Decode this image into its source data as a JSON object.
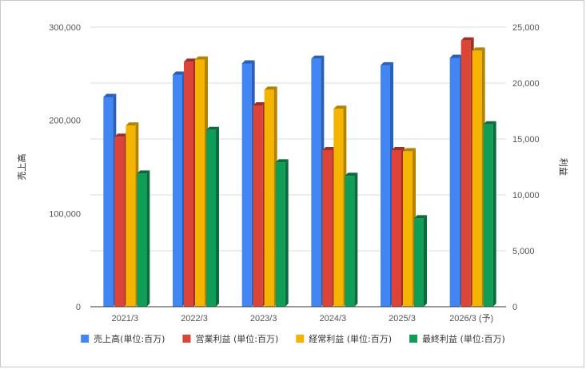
{
  "chart_data": {
    "type": "bar",
    "title": "",
    "categories": [
      "2021/3",
      "2022/3",
      "2023/3",
      "2024/3",
      "2025/3",
      "2026/3 (予)"
    ],
    "left_axis": {
      "label": "売上高",
      "ylim": [
        0,
        300000
      ],
      "ticks": [
        "0",
        "100,000",
        "200,000",
        "300,000"
      ],
      "tick_values": [
        0,
        100000,
        200000,
        300000
      ]
    },
    "right_axis": {
      "label": "利益",
      "ylim": [
        0,
        25000
      ],
      "ticks": [
        "0",
        "5,000",
        "10,000",
        "15,000",
        "20,000",
        "25,000"
      ],
      "tick_values": [
        0,
        5000,
        10000,
        15000,
        20000,
        25000
      ]
    },
    "series": [
      {
        "name": "売上高(単位:百万)",
        "axis": "left",
        "color": "#4285f4",
        "shade": "#2a5fb8",
        "values": [
          225000,
          249000,
          261000,
          266000,
          259000,
          267000
        ]
      },
      {
        "name": "営業利益 (単位:百万)",
        "axis": "right",
        "color": "#db4437",
        "shade": "#9e2f25",
        "values": [
          15200,
          21900,
          18000,
          14000,
          14000,
          23800
        ]
      },
      {
        "name": "経常利益 (単位:百万)",
        "axis": "right",
        "color": "#f4b400",
        "shade": "#b38300",
        "values": [
          16200,
          22100,
          19400,
          17700,
          13900,
          22900
        ]
      },
      {
        "name": "最終利益 (単位:百万)",
        "axis": "right",
        "color": "#0f9d58",
        "shade": "#0a6b3c",
        "values": [
          11900,
          15800,
          12900,
          11700,
          7900,
          16300
        ]
      }
    ],
    "grid": true,
    "legend_position": "bottom"
  }
}
